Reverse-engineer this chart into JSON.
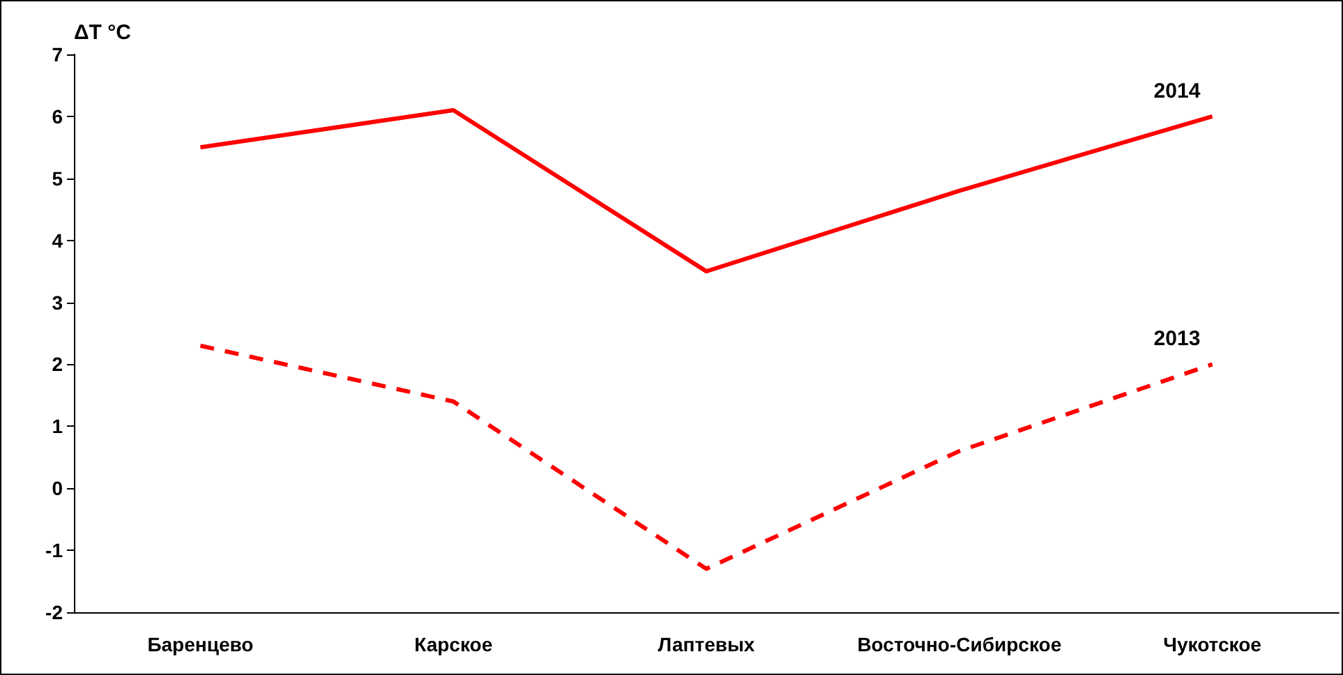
{
  "chart_data": {
    "type": "line",
    "ylabel": "ΔT °C",
    "categories": [
      "Баренцево",
      "Карское",
      "Лаптевых",
      "Восточно-Сибирское",
      "Чукотское"
    ],
    "series": [
      {
        "name": "2014",
        "color": "#ff0000",
        "values": [
          5.5,
          6.1,
          3.5,
          4.8,
          6.0
        ],
        "line_style": "solid"
      },
      {
        "name": "2013",
        "color": "#ff0000",
        "values": [
          2.3,
          1.4,
          -1.3,
          0.6,
          2.0
        ],
        "line_style": "dashed"
      }
    ],
    "ylim": [
      -2,
      7
    ],
    "yticks": [
      -2,
      -1,
      0,
      1,
      2,
      3,
      4,
      5,
      6,
      7
    ],
    "grid": false,
    "legend": false,
    "marker": "none"
  }
}
